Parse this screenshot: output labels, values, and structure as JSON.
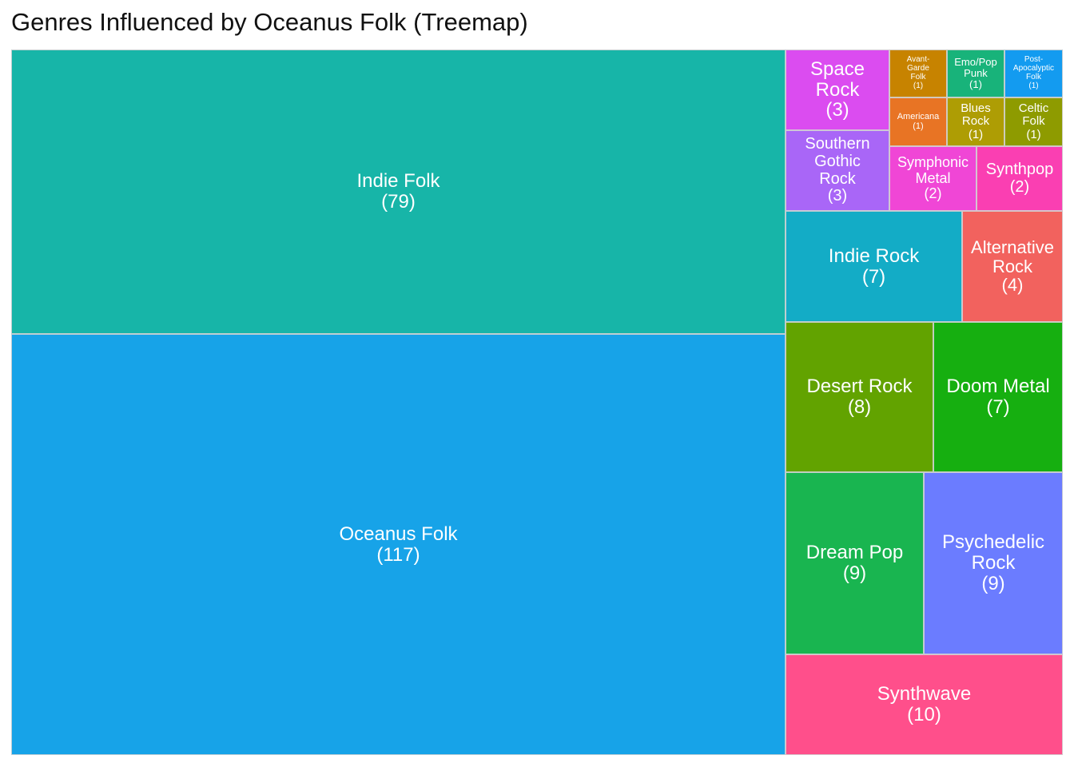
{
  "chart_data": {
    "type": "treemap",
    "title": "Genres Influenced by Oceanus Folk (Treemap)",
    "items": [
      {
        "name": "Oceanus Folk",
        "value": 117,
        "color": "#17A3E8"
      },
      {
        "name": "Indie Folk",
        "value": 79,
        "color": "#17B5A8"
      },
      {
        "name": "Synthwave",
        "value": 10,
        "color": "#FF4F8B"
      },
      {
        "name": "Dream Pop",
        "value": 9,
        "color": "#19B550"
      },
      {
        "name": "Psychedelic Rock",
        "value": 9,
        "color": "#6B7CFF"
      },
      {
        "name": "Desert Rock",
        "value": 8,
        "color": "#62A300"
      },
      {
        "name": "Doom Metal",
        "value": 7,
        "color": "#16AF10"
      },
      {
        "name": "Indie Rock",
        "value": 7,
        "color": "#13ACC6"
      },
      {
        "name": "Alternative Rock",
        "value": 4,
        "color": "#F2625E"
      },
      {
        "name": "Space Rock",
        "value": 3,
        "color": "#DB4CF0"
      },
      {
        "name": "Southern Gothic Rock",
        "value": 3,
        "color": "#A966F7"
      },
      {
        "name": "Symphonic Metal",
        "value": 2,
        "color": "#F046D6"
      },
      {
        "name": "Synthpop",
        "value": 2,
        "color": "#FA3FB2"
      },
      {
        "name": "Avant-Garde Folk",
        "value": 1,
        "color": "#C78300"
      },
      {
        "name": "Emo/Pop Punk",
        "value": 1,
        "color": "#18B37A"
      },
      {
        "name": "Post-Apocalyptic Folk",
        "value": 1,
        "color": "#139BF0"
      },
      {
        "name": "Americana",
        "value": 1,
        "color": "#E87424"
      },
      {
        "name": "Blues Rock",
        "value": 1,
        "color": "#AE9D04"
      },
      {
        "name": "Celtic Folk",
        "value": 1,
        "color": "#8E9B00"
      }
    ]
  }
}
